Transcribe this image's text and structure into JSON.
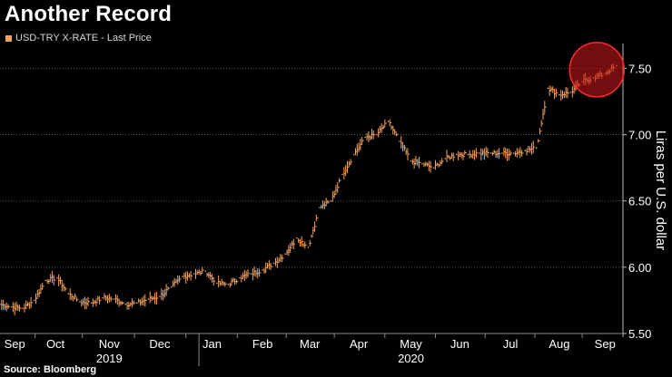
{
  "title": "Another Record",
  "source": "Source: Bloomberg",
  "colors": {
    "background": "#000000",
    "series": "#f5a35c",
    "highlight": "#c0161a",
    "grid": "#555555",
    "text": "#ffffff"
  },
  "chart_data": {
    "type": "line",
    "title": "Another Record",
    "legend": {
      "position": "top-left",
      "entries": [
        "USD-TRY X-RATE - Last Price"
      ]
    },
    "series": [
      {
        "name": "USD-TRY X-RATE - Last Price",
        "x": [
          "2019-09-01",
          "2019-09-08",
          "2019-09-15",
          "2019-09-22",
          "2019-09-29",
          "2019-10-06",
          "2019-10-13",
          "2019-10-20",
          "2019-10-27",
          "2019-11-03",
          "2019-11-10",
          "2019-11-17",
          "2019-11-24",
          "2019-12-01",
          "2019-12-08",
          "2019-12-15",
          "2019-12-22",
          "2019-12-29",
          "2020-01-05",
          "2020-01-12",
          "2020-01-19",
          "2020-01-26",
          "2020-02-02",
          "2020-02-09",
          "2020-02-16",
          "2020-02-23",
          "2020-03-01",
          "2020-03-08",
          "2020-03-15",
          "2020-03-22",
          "2020-03-29",
          "2020-04-05",
          "2020-04-12",
          "2020-04-19",
          "2020-04-26",
          "2020-05-03",
          "2020-05-10",
          "2020-05-17",
          "2020-05-24",
          "2020-05-31",
          "2020-06-07",
          "2020-06-14",
          "2020-06-21",
          "2020-06-28",
          "2020-07-05",
          "2020-07-12",
          "2020-07-19",
          "2020-07-26",
          "2020-08-02",
          "2020-08-09",
          "2020-08-16",
          "2020-08-23",
          "2020-08-30",
          "2020-09-06",
          "2020-09-13"
        ],
        "values": [
          5.72,
          5.7,
          5.69,
          5.75,
          5.9,
          5.92,
          5.8,
          5.74,
          5.73,
          5.77,
          5.76,
          5.72,
          5.73,
          5.76,
          5.78,
          5.85,
          5.93,
          5.95,
          5.97,
          5.88,
          5.87,
          5.92,
          5.95,
          5.98,
          6.03,
          6.1,
          6.22,
          6.15,
          6.45,
          6.5,
          6.7,
          6.85,
          6.98,
          7.0,
          7.1,
          6.95,
          6.8,
          6.78,
          6.75,
          6.82,
          6.85,
          6.85,
          6.86,
          6.86,
          6.86,
          6.86,
          6.88,
          6.9,
          7.35,
          7.3,
          7.32,
          7.4,
          7.43,
          7.46,
          7.52
        ]
      }
    ],
    "x_ticks": [
      {
        "date": "2019-09-10",
        "label": "Sep"
      },
      {
        "date": "2019-10-05",
        "label": "Oct"
      },
      {
        "date": "2019-11-07",
        "label": "Nov"
      },
      {
        "date": "2019-12-08",
        "label": "Dec"
      },
      {
        "date": "2020-01-09",
        "label": "Jan"
      },
      {
        "date": "2020-02-09",
        "label": "Feb"
      },
      {
        "date": "2020-03-09",
        "label": "Mar"
      },
      {
        "date": "2020-04-08",
        "label": "Apr"
      },
      {
        "date": "2020-05-10",
        "label": "May"
      },
      {
        "date": "2020-06-09",
        "label": "Jun"
      },
      {
        "date": "2020-07-10",
        "label": "Jul"
      },
      {
        "date": "2020-08-09",
        "label": "Aug"
      },
      {
        "date": "2020-09-06",
        "label": "Sep"
      }
    ],
    "year_labels": [
      {
        "date": "2019-11-07",
        "label": "2019"
      },
      {
        "date": "2020-05-10",
        "label": "2020"
      }
    ],
    "year_separator": "2020-01-01",
    "xlim": [
      "2019-09-01",
      "2020-09-17"
    ],
    "y_ticks": [
      5.5,
      6.0,
      6.5,
      7.0,
      7.5
    ],
    "y_tick_labels": [
      "5.50",
      "6.00",
      "6.50",
      "7.00",
      "7.50"
    ],
    "ylim": [
      5.5,
      7.66
    ],
    "ylabel": "Liras per U.S. dollar",
    "xlabel": "",
    "grid": "horizontal dotted",
    "highlight": {
      "date": "2020-09-01",
      "value": 7.49,
      "shape": "circle"
    }
  }
}
